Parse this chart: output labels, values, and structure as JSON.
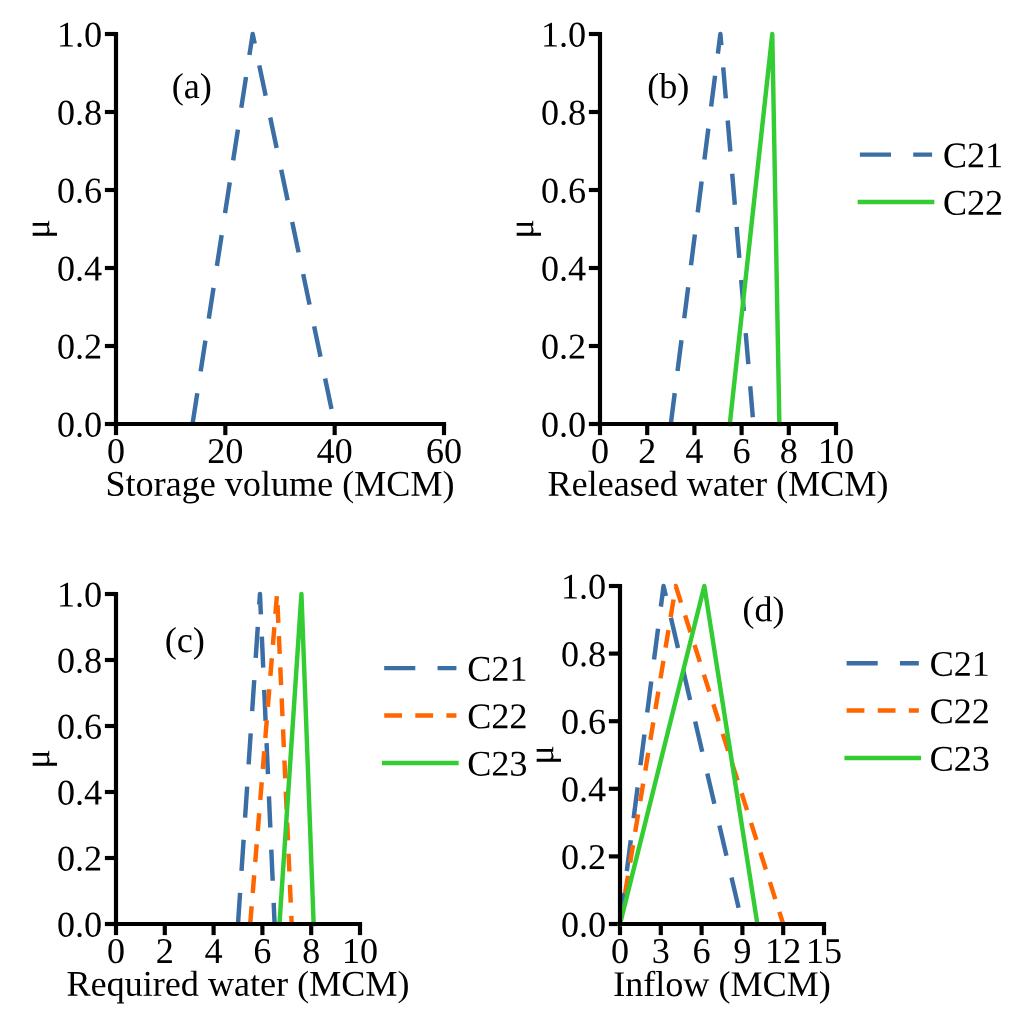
{
  "chart_data": [
    {
      "type": "line",
      "xlabel": "Storage volume (MCM)",
      "ylabel": "μ",
      "annotations": [
        "(a)"
      ],
      "xlim": [
        0,
        60
      ],
      "xticks": [
        0,
        20,
        40,
        60
      ],
      "ylim": [
        0,
        1
      ],
      "yticks": [
        {
          "value": 0,
          "label": "0.0"
        },
        {
          "value": 0.2,
          "label": "0.2"
        },
        {
          "value": 0.4,
          "label": "0.4"
        },
        {
          "value": 0.6,
          "label": "0.6"
        },
        {
          "value": 0.8,
          "label": "0.8"
        },
        {
          "value": 1,
          "label": "1.0"
        }
      ],
      "grid": false,
      "legend": false,
      "series": [
        {
          "color": "#3a6ea5",
          "line_style": "dashed",
          "x": [
            14,
            25,
            40
          ],
          "values": [
            0,
            1,
            0
          ]
        }
      ]
    },
    {
      "type": "line",
      "xlabel": "Released water (MCM)",
      "ylabel": "μ",
      "annotations": [
        "(b)"
      ],
      "xlim": [
        0,
        10
      ],
      "xticks": [
        0,
        2,
        4,
        6,
        8,
        10
      ],
      "ylim": [
        0,
        1
      ],
      "yticks": [
        {
          "value": 0,
          "label": "0.0"
        },
        {
          "value": 0.2,
          "label": "0.2"
        },
        {
          "value": 0.4,
          "label": "0.4"
        },
        {
          "value": 0.6,
          "label": "0.6"
        },
        {
          "value": 0.8,
          "label": "0.8"
        },
        {
          "value": 1,
          "label": "1.0"
        }
      ],
      "grid": false,
      "legend": "right",
      "series": [
        {
          "name": "C21",
          "color": "#3a6ea5",
          "line_style": "dashed",
          "x": [
            3,
            5.1,
            6.5
          ],
          "values": [
            0,
            1,
            0
          ]
        },
        {
          "name": "C22",
          "color": "#33cc33",
          "line_style": "solid",
          "x": [
            5.5,
            7.3,
            7.6
          ],
          "values": [
            0,
            1,
            0
          ]
        }
      ]
    },
    {
      "type": "line",
      "xlabel": "Required water (MCM)",
      "ylabel": "μ",
      "annotations": [
        "(c)"
      ],
      "xlim": [
        0,
        10
      ],
      "xticks": [
        0,
        2,
        4,
        6,
        8,
        10
      ],
      "ylim": [
        0,
        1
      ],
      "yticks": [
        {
          "value": 0,
          "label": "0.0"
        },
        {
          "value": 0.2,
          "label": "0.2"
        },
        {
          "value": 0.4,
          "label": "0.4"
        },
        {
          "value": 0.6,
          "label": "0.6"
        },
        {
          "value": 0.8,
          "label": "0.8"
        },
        {
          "value": 1,
          "label": "1.0"
        }
      ],
      "grid": false,
      "legend": "right",
      "series": [
        {
          "name": "C21",
          "color": "#3a6ea5",
          "line_style": "dashed",
          "x": [
            5.0,
            5.9,
            6.5
          ],
          "values": [
            0,
            1,
            0
          ]
        },
        {
          "name": "C22",
          "color": "#ff6600",
          "line_style": "dashed",
          "x": [
            5.5,
            6.6,
            7.2
          ],
          "values": [
            0,
            1,
            0
          ]
        },
        {
          "name": "C23",
          "color": "#33cc33",
          "line_style": "solid",
          "x": [
            6.7,
            7.6,
            8.1
          ],
          "values": [
            0,
            1,
            0
          ]
        }
      ]
    },
    {
      "type": "line",
      "xlabel": "Inflow (MCM)",
      "ylabel": "μ",
      "annotations": [
        "(d)"
      ],
      "xlim": [
        0,
        15
      ],
      "xticks": [
        0,
        3,
        6,
        9,
        12,
        15
      ],
      "ylim": [
        0,
        1
      ],
      "yticks": [
        {
          "value": 0,
          "label": "0.0"
        },
        {
          "value": 0.2,
          "label": "0.2"
        },
        {
          "value": 0.4,
          "label": "0.4"
        },
        {
          "value": 0.6,
          "label": "0.6"
        },
        {
          "value": 0.8,
          "label": "0.8"
        },
        {
          "value": 1,
          "label": "1.0"
        }
      ],
      "grid": false,
      "legend": "right",
      "series": [
        {
          "name": "C21",
          "color": "#3a6ea5",
          "line_style": "dashed",
          "x": [
            0,
            3.2,
            9.0
          ],
          "values": [
            0,
            1,
            0
          ]
        },
        {
          "name": "C22",
          "color": "#ff6600",
          "line_style": "dashed",
          "x": [
            0,
            4.1,
            12.0
          ],
          "values": [
            0,
            1,
            0
          ]
        },
        {
          "name": "C23",
          "color": "#33cc33",
          "line_style": "solid",
          "x": [
            0,
            6.2,
            10.1
          ],
          "values": [
            0,
            1,
            0
          ]
        }
      ]
    }
  ]
}
